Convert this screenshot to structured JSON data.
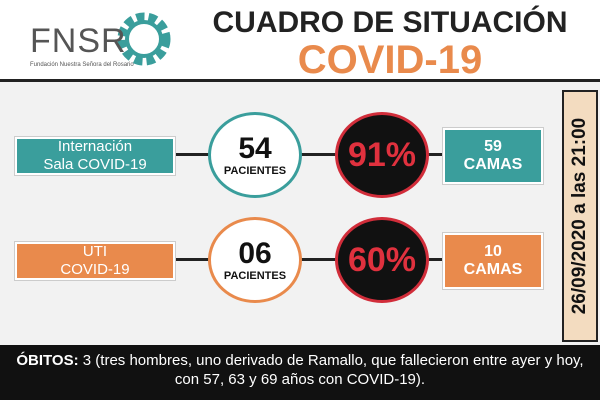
{
  "header": {
    "logo": "FNSR",
    "logo_subtitle": "Fundación Nuestra Señora del Rosario",
    "title": "CUADRO DE SITUACIÓN",
    "subtitle": "COVID-19"
  },
  "rows": [
    {
      "label_lines": [
        "Internación",
        "Sala COVID-19"
      ],
      "count": "54",
      "count_unit": "PACIENTES",
      "percent": "91%",
      "beds": "59",
      "beds_unit": "CAMAS"
    },
    {
      "label_lines": [
        "UTI",
        "COVID-19"
      ],
      "count": "06",
      "count_unit": "PACIENTES",
      "percent": "60%",
      "beds": "10",
      "beds_unit": "CAMAS"
    }
  ],
  "date": "26/09/2020 a las 21:00",
  "footer": {
    "lead": "ÓBITOS:",
    "text": "3 (tres hombres, uno derivado de Ramallo, que fallecieron entre ayer y hoy, con 57, 63 y 69 años con  COVID-19)."
  }
}
